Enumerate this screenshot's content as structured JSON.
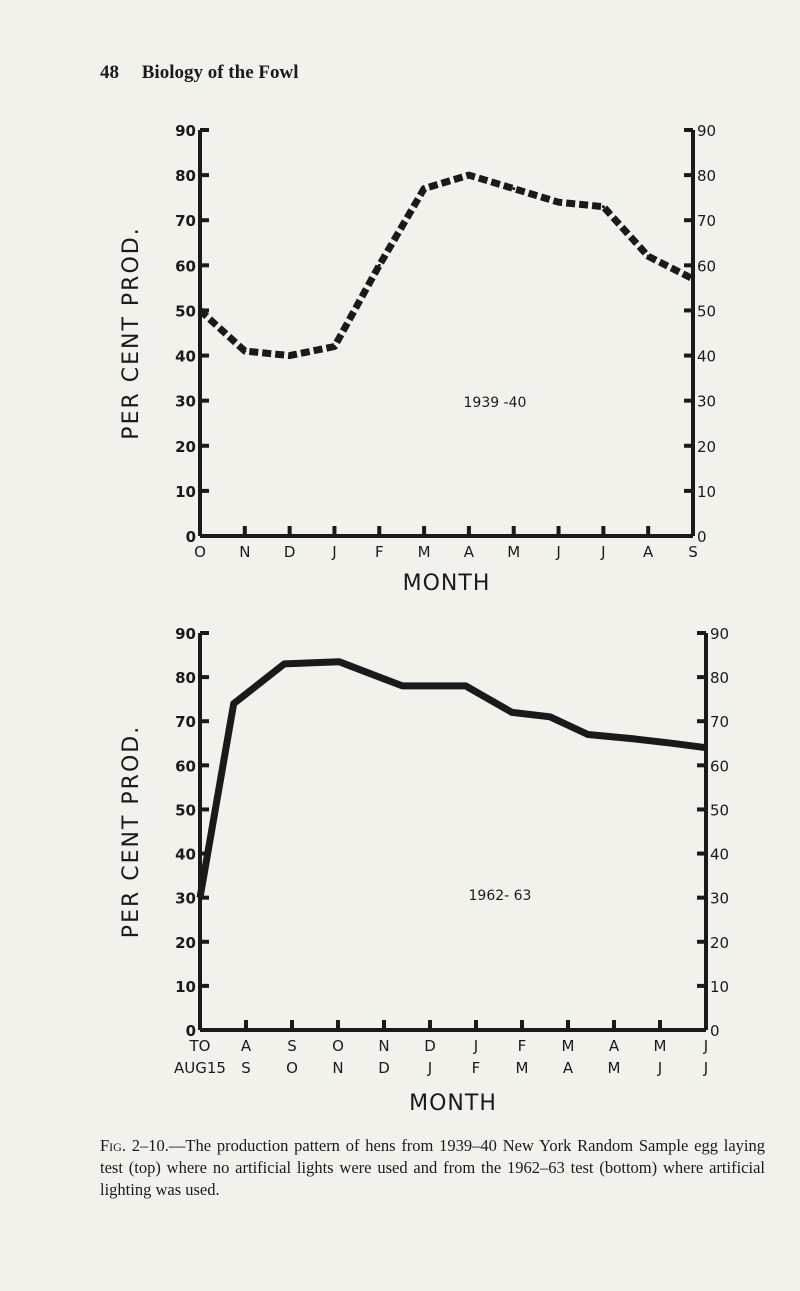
{
  "page": {
    "number": "48",
    "running_title": "Biology of the Fowl"
  },
  "caption": {
    "fig_label": "Fig. 2–10.",
    "text": "—The production pattern of hens from 1939–40 New York Random Sample egg laying test (top) where no artificial lights were used and from the 1962–63 test (bottom) where artificial lighting was used."
  },
  "colors": {
    "ink": "#1a1a1a",
    "paper": "#f2f1ec"
  },
  "chart_data": [
    {
      "type": "line",
      "title": "1939 -40",
      "ylabel": "PER CENT PROD.",
      "xlabel": "MONTH",
      "ylim": [
        0,
        90
      ],
      "y_ticks": [
        0,
        10,
        20,
        30,
        40,
        50,
        60,
        70,
        80,
        90
      ],
      "categories": [
        "O",
        "N",
        "D",
        "J",
        "F",
        "M",
        "A",
        "M",
        "J",
        "J",
        "A",
        "S"
      ],
      "series": [
        {
          "values": [
            50,
            41,
            40,
            42,
            60,
            77,
            80,
            77,
            74,
            73,
            62,
            57
          ]
        }
      ],
      "line_style": "dashed-heavy",
      "grid": false,
      "right_axis": true
    },
    {
      "type": "line",
      "title": "1962- 63",
      "ylabel": "PER CENT PROD.",
      "xlabel": "MONTH",
      "ylim": [
        0,
        90
      ],
      "y_ticks": [
        0,
        10,
        20,
        30,
        40,
        50,
        60,
        70,
        80,
        90
      ],
      "categories": [
        [
          "TO",
          "AUG15"
        ],
        [
          "A",
          "S"
        ],
        [
          "S",
          "O"
        ],
        [
          "O",
          "N"
        ],
        [
          "N",
          "D"
        ],
        [
          "D",
          "J"
        ],
        [
          "J",
          "F"
        ],
        [
          "F",
          "M"
        ],
        [
          "M",
          "A"
        ],
        [
          "A",
          "M"
        ],
        [
          "M",
          "J"
        ],
        [
          "J",
          "J"
        ]
      ],
      "x": [
        0,
        0.8,
        2,
        3.3,
        4.8,
        6.3,
        7.4,
        8.3,
        9.2,
        10.3,
        11.2,
        12
      ],
      "series": [
        {
          "values": [
            30,
            74,
            83,
            83.5,
            78,
            78,
            72,
            71,
            67,
            66,
            65,
            64
          ]
        }
      ],
      "line_style": "solid-heavy",
      "grid": false,
      "right_axis": true
    }
  ]
}
